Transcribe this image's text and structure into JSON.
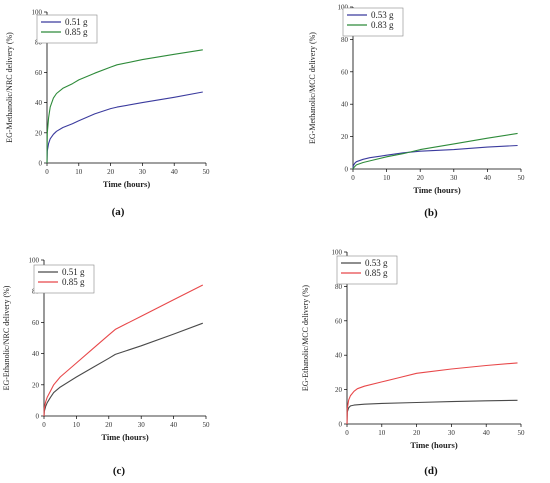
{
  "chart_data": [
    {
      "type": "line",
      "panel_label": "(a)",
      "xlabel": "Time (hours)",
      "ylabel": "EG-Methanolic/NRC delivery (%)",
      "xlim": [
        0,
        50
      ],
      "ylim": [
        0,
        100
      ],
      "xticks": [
        0,
        10,
        20,
        30,
        40,
        50
      ],
      "yticks": [
        0,
        20,
        40,
        60,
        80,
        100
      ],
      "legend_position": "top-left",
      "series": [
        {
          "name": "0.51 g",
          "color": "#3b3b9e",
          "x": [
            0,
            0.1,
            0.5,
            1,
            2,
            3,
            5,
            8,
            10,
            15,
            20,
            22,
            30,
            40,
            49
          ],
          "y": [
            0,
            8,
            13,
            16,
            19,
            21,
            23.5,
            26,
            28,
            32.5,
            36,
            37,
            40,
            43.5,
            47
          ]
        },
        {
          "name": "0.85 g",
          "color": "#2e8b3a",
          "x": [
            0,
            0.1,
            0.5,
            1,
            2,
            3,
            5,
            8,
            10,
            15,
            20,
            22,
            30,
            40,
            49
          ],
          "y": [
            0,
            20,
            30,
            37,
            43,
            46,
            49.5,
            52.5,
            55,
            59.5,
            63.5,
            65,
            68.5,
            72,
            75
          ]
        }
      ]
    },
    {
      "type": "line",
      "panel_label": "(b)",
      "xlabel": "Time (hours)",
      "ylabel": "EG-Methanolic/MCC delivery (%)",
      "xlim": [
        0,
        50
      ],
      "ylim": [
        0,
        100
      ],
      "xticks": [
        0,
        10,
        20,
        30,
        40,
        50
      ],
      "yticks": [
        0,
        20,
        40,
        60,
        80,
        100
      ],
      "legend_position": "top-left",
      "series": [
        {
          "name": "0.53 g",
          "color": "#3b3b9e",
          "x": [
            0,
            0.1,
            0.5,
            1,
            3,
            5,
            10,
            15,
            20,
            30,
            40,
            49
          ],
          "y": [
            0,
            2,
            3.5,
            4.5,
            6,
            7,
            8.5,
            10,
            11,
            12,
            13.5,
            14.5
          ]
        },
        {
          "name": "0.83 g",
          "color": "#2e8b3a",
          "x": [
            0,
            0.1,
            0.5,
            1,
            3,
            5,
            10,
            15,
            20,
            30,
            40,
            49
          ],
          "y": [
            0,
            0.5,
            1.5,
            2.5,
            4,
            5,
            7.5,
            9.5,
            12,
            15.5,
            19,
            22
          ]
        }
      ]
    },
    {
      "type": "line",
      "panel_label": "(c)",
      "xlabel": "Time (hours)",
      "ylabel": "EG-Ethanolic/NRC delivery (%)",
      "xlim": [
        0,
        50
      ],
      "ylim": [
        0,
        100
      ],
      "xticks": [
        0,
        10,
        20,
        30,
        40,
        50
      ],
      "yticks": [
        0,
        20,
        40,
        60,
        80,
        100
      ],
      "legend_position": "top-left",
      "series": [
        {
          "name": "0.51 g",
          "color": "#4a4a4a",
          "x": [
            0,
            0.1,
            0.5,
            1,
            2,
            3,
            5,
            10,
            15,
            20,
            22,
            30,
            40,
            49
          ],
          "y": [
            0,
            3,
            6,
            8.5,
            12,
            15,
            18.5,
            25,
            31,
            37,
            39.5,
            45,
            52.5,
            59.5
          ]
        },
        {
          "name": "0.85 g",
          "color": "#e8484a",
          "x": [
            0,
            0.1,
            0.5,
            1,
            2,
            3,
            5,
            10,
            15,
            20,
            22,
            30,
            40,
            49
          ],
          "y": [
            0,
            5,
            9,
            12,
            16,
            20,
            25,
            34,
            43,
            52,
            55.5,
            64,
            74.5,
            84
          ]
        }
      ]
    },
    {
      "type": "line",
      "panel_label": "(d)",
      "xlabel": "Time (hours)",
      "ylabel": "EG-Ethanolic/MCC delivery (%)",
      "xlim": [
        0,
        50
      ],
      "ylim": [
        0,
        100
      ],
      "xticks": [
        0,
        10,
        20,
        30,
        40,
        50
      ],
      "yticks": [
        0,
        20,
        40,
        60,
        80,
        100
      ],
      "legend_position": "top-left",
      "series": [
        {
          "name": "0.53 g",
          "color": "#4a4a4a",
          "x": [
            0,
            0.1,
            0.5,
            1,
            2,
            5,
            10,
            20,
            30,
            40,
            49
          ],
          "y": [
            0,
            7,
            9.5,
            10.5,
            11,
            11.5,
            12,
            12.5,
            13,
            13.5,
            13.8
          ]
        },
        {
          "name": "0.85 g",
          "color": "#e8484a",
          "x": [
            0,
            0.1,
            0.5,
            1,
            2,
            3,
            5,
            10,
            15,
            20,
            22,
            30,
            40,
            49
          ],
          "y": [
            0,
            9,
            14,
            16.5,
            19,
            20.5,
            22,
            24.5,
            27,
            29.5,
            30,
            32,
            34,
            35.5
          ]
        }
      ]
    }
  ]
}
